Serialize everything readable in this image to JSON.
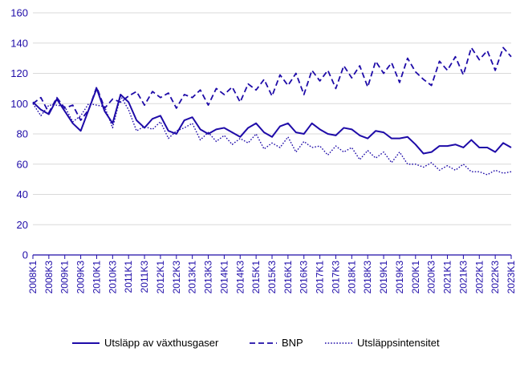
{
  "colors": {
    "series": "#1e0ba8",
    "grid": "#d9d9d9",
    "axis_text": "#1e0ba8",
    "axis_line": "#1e0ba8"
  },
  "chart_data": {
    "type": "line",
    "title": "",
    "xlabel": "",
    "ylabel": "",
    "ylim": [
      0,
      160
    ],
    "yticks": [
      0,
      20,
      40,
      60,
      80,
      100,
      120,
      140,
      160
    ],
    "grid": "horizontal",
    "legend_position": "bottom",
    "x": [
      "2008K1",
      "2008K2",
      "2008K3",
      "2008K4",
      "2009K1",
      "2009K2",
      "2009K3",
      "2009K4",
      "2010K1",
      "2010K2",
      "2010K3",
      "2010K4",
      "2011K1",
      "2011K2",
      "2011K3",
      "2011K4",
      "2012K1",
      "2012K2",
      "2012K3",
      "2012K4",
      "2013K1",
      "2013K2",
      "2013K3",
      "2013K4",
      "2014K1",
      "2014K2",
      "2014K3",
      "2014K4",
      "2015K1",
      "2015K2",
      "2015K3",
      "2015K4",
      "2016K1",
      "2016K2",
      "2016K3",
      "2016K4",
      "2017K1",
      "2017K2",
      "2017K3",
      "2017K4",
      "2018K1",
      "2018K2",
      "2018K3",
      "2018K4",
      "2019K1",
      "2019K2",
      "2019K3",
      "2019K4",
      "2020K1",
      "2020K2",
      "2020K3",
      "2020K4",
      "2021K1",
      "2021K2",
      "2021K3",
      "2021K4",
      "2022K1",
      "2022K2",
      "2022K3",
      "2022K4",
      "2023K1"
    ],
    "x_tick_labels": [
      "2008K1",
      "2008K3",
      "2009K1",
      "2009K3",
      "2010K1",
      "2010K3",
      "2011K1",
      "2011K3",
      "2012K1",
      "2012K3",
      "2013K1",
      "2013K3",
      "2014K1",
      "2014K3",
      "2015K1",
      "2015K3",
      "2016K1",
      "2016K3",
      "2017K1",
      "2017K3",
      "2018K1",
      "2018K3",
      "2019K1",
      "2019K3",
      "2020K1",
      "2020K3",
      "2021K1",
      "2021K3",
      "2022K1",
      "2022K3",
      "2023K1"
    ],
    "series": [
      {
        "name": "Utsläpp av växthusgaser",
        "style": "solid",
        "values": [
          101,
          96,
          93,
          103,
          95,
          87,
          82,
          96,
          110,
          95,
          87,
          106,
          101,
          89,
          84,
          90,
          92,
          82,
          80,
          89,
          91,
          83,
          80,
          83,
          84,
          81,
          78,
          84,
          87,
          81,
          78,
          85,
          87,
          81,
          80,
          87,
          83,
          80,
          79,
          84,
          83,
          79,
          77,
          82,
          81,
          77,
          77,
          78,
          73,
          67,
          68,
          72,
          72,
          73,
          71,
          76,
          71,
          71,
          68,
          74,
          71
        ]
      },
      {
        "name": "BNP",
        "style": "dashed",
        "values": [
          100,
          104,
          94,
          104,
          97,
          99,
          89,
          96,
          111,
          97,
          103,
          101,
          105,
          108,
          99,
          108,
          104,
          107,
          97,
          106,
          104,
          109,
          99,
          110,
          106,
          111,
          101,
          113,
          109,
          116,
          105,
          119,
          112,
          120,
          106,
          122,
          115,
          122,
          110,
          125,
          117,
          125,
          111,
          128,
          120,
          127,
          114,
          130,
          121,
          116,
          112,
          128,
          122,
          131,
          119,
          137,
          129,
          135,
          122,
          137,
          131
        ]
      },
      {
        "name": "Utsläppsintensitet",
        "style": "dotted",
        "values": [
          100,
          92,
          99,
          99,
          98,
          88,
          92,
          100,
          99,
          98,
          84,
          105,
          96,
          82,
          85,
          83,
          88,
          77,
          82,
          84,
          87,
          76,
          81,
          75,
          79,
          73,
          77,
          74,
          80,
          70,
          74,
          71,
          78,
          68,
          75,
          71,
          72,
          66,
          72,
          68,
          71,
          63,
          69,
          64,
          68,
          61,
          68,
          60,
          60,
          58,
          61,
          56,
          59,
          56,
          60,
          55,
          55,
          53,
          56,
          54,
          55
        ]
      }
    ]
  }
}
